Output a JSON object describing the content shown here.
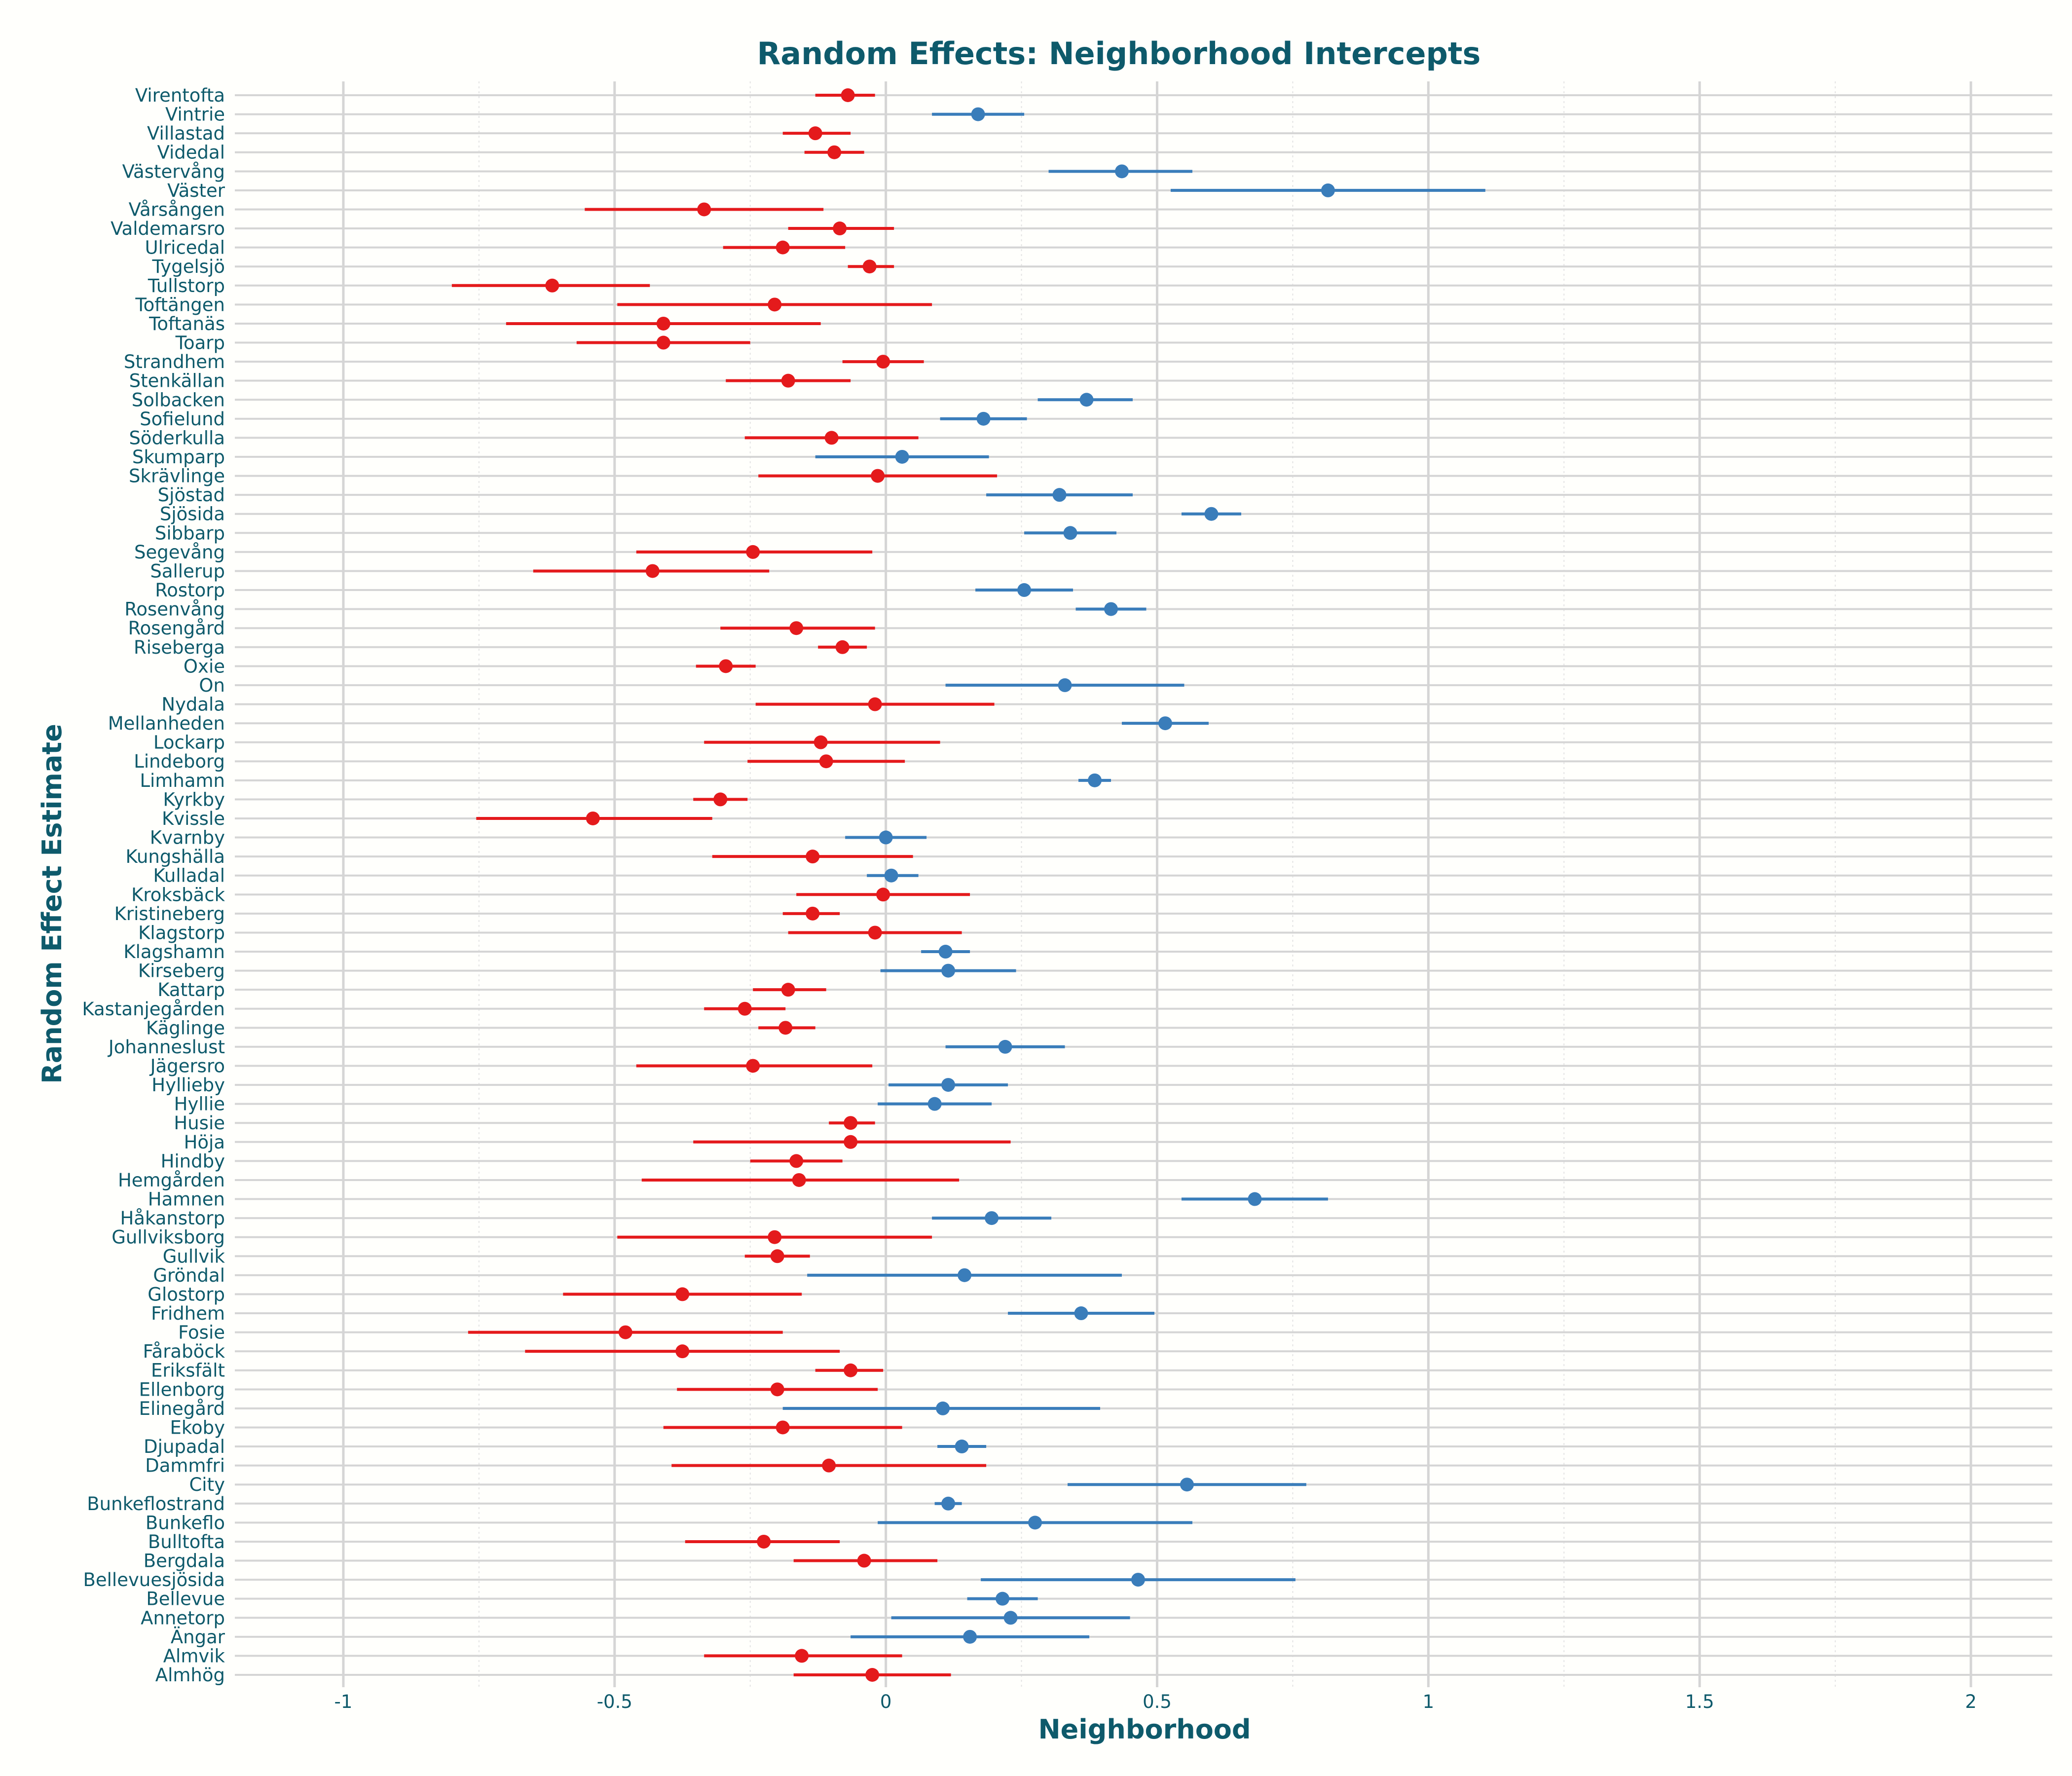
{
  "chart_data": {
    "type": "scatter",
    "title": "Random Effects: Neighborhood Intercepts",
    "xlabel": "Neighborhood",
    "ylabel": "Random Effect Estimate",
    "xlim": [
      -1.2,
      2.15
    ],
    "xticks": [
      -1,
      -0.5,
      0,
      0.5,
      1,
      1.5,
      2
    ],
    "xtick_labels": [
      "-1",
      "-0.5",
      "0",
      "0.5",
      "1",
      "1.5",
      "2"
    ],
    "grid": true,
    "legend": "none",
    "colors": {
      "positive": "#3A7DBA",
      "negative": "#E41A1C",
      "text": "#0E5A6B",
      "grid": "#D5D5D5",
      "background": "#FFFFFC"
    },
    "points": [
      {
        "name": "Virentofta",
        "estimate": -0.07,
        "lower": -0.13,
        "upper": -0.02
      },
      {
        "name": "Vintrie",
        "estimate": 0.17,
        "lower": 0.085,
        "upper": 0.255
      },
      {
        "name": "Villastad",
        "estimate": -0.13,
        "lower": -0.19,
        "upper": -0.065
      },
      {
        "name": "Videdal",
        "estimate": -0.095,
        "lower": -0.15,
        "upper": -0.04
      },
      {
        "name": "Västervång",
        "estimate": 0.435,
        "lower": 0.3,
        "upper": 0.565
      },
      {
        "name": "Väster",
        "estimate": 0.815,
        "lower": 0.525,
        "upper": 1.105
      },
      {
        "name": "Vårsången",
        "estimate": -0.335,
        "lower": -0.555,
        "upper": -0.115
      },
      {
        "name": "Valdemarsro",
        "estimate": -0.085,
        "lower": -0.18,
        "upper": 0.015
      },
      {
        "name": "Ulricedal",
        "estimate": -0.19,
        "lower": -0.3,
        "upper": -0.075
      },
      {
        "name": "Tygelsjö",
        "estimate": -0.03,
        "lower": -0.07,
        "upper": 0.015
      },
      {
        "name": "Tullstorp",
        "estimate": -0.615,
        "lower": -0.8,
        "upper": -0.435
      },
      {
        "name": "Toftängen",
        "estimate": -0.205,
        "lower": -0.495,
        "upper": 0.085
      },
      {
        "name": "Toftanäs",
        "estimate": -0.41,
        "lower": -0.7,
        "upper": -0.12
      },
      {
        "name": "Toarp",
        "estimate": -0.41,
        "lower": -0.57,
        "upper": -0.25
      },
      {
        "name": "Strandhem",
        "estimate": -0.005,
        "lower": -0.08,
        "upper": 0.07
      },
      {
        "name": "Stenkällan",
        "estimate": -0.18,
        "lower": -0.295,
        "upper": -0.065
      },
      {
        "name": "Solbacken",
        "estimate": 0.37,
        "lower": 0.28,
        "upper": 0.455
      },
      {
        "name": "Sofielund",
        "estimate": 0.18,
        "lower": 0.1,
        "upper": 0.26
      },
      {
        "name": "Söderkulla",
        "estimate": -0.1,
        "lower": -0.26,
        "upper": 0.06
      },
      {
        "name": "Skumparp",
        "estimate": 0.03,
        "lower": -0.13,
        "upper": 0.19
      },
      {
        "name": "Skrävlinge",
        "estimate": -0.015,
        "lower": -0.235,
        "upper": 0.205
      },
      {
        "name": "Sjöstad",
        "estimate": 0.32,
        "lower": 0.185,
        "upper": 0.455
      },
      {
        "name": "Sjösida",
        "estimate": 0.6,
        "lower": 0.545,
        "upper": 0.655
      },
      {
        "name": "Sibbarp",
        "estimate": 0.34,
        "lower": 0.255,
        "upper": 0.425
      },
      {
        "name": "Segevång",
        "estimate": -0.245,
        "lower": -0.46,
        "upper": -0.025
      },
      {
        "name": "Sallerup",
        "estimate": -0.43,
        "lower": -0.65,
        "upper": -0.215
      },
      {
        "name": "Rostorp",
        "estimate": 0.255,
        "lower": 0.165,
        "upper": 0.345
      },
      {
        "name": "Rosenvång",
        "estimate": 0.415,
        "lower": 0.35,
        "upper": 0.48
      },
      {
        "name": "Rosengård",
        "estimate": -0.165,
        "lower": -0.305,
        "upper": -0.02
      },
      {
        "name": "Riseberga",
        "estimate": -0.08,
        "lower": -0.125,
        "upper": -0.035
      },
      {
        "name": "Oxie",
        "estimate": -0.295,
        "lower": -0.35,
        "upper": -0.24
      },
      {
        "name": "On",
        "estimate": 0.33,
        "lower": 0.11,
        "upper": 0.55
      },
      {
        "name": "Nydala",
        "estimate": -0.02,
        "lower": -0.24,
        "upper": 0.2
      },
      {
        "name": "Mellanheden",
        "estimate": 0.515,
        "lower": 0.435,
        "upper": 0.595
      },
      {
        "name": "Lockarp",
        "estimate": -0.12,
        "lower": -0.335,
        "upper": 0.1
      },
      {
        "name": "Lindeborg",
        "estimate": -0.11,
        "lower": -0.255,
        "upper": 0.035
      },
      {
        "name": "Limhamn",
        "estimate": 0.385,
        "lower": 0.355,
        "upper": 0.415
      },
      {
        "name": "Kyrkby",
        "estimate": -0.305,
        "lower": -0.355,
        "upper": -0.255
      },
      {
        "name": "Kvissle",
        "estimate": -0.54,
        "lower": -0.755,
        "upper": -0.32
      },
      {
        "name": "Kvarnby",
        "estimate": 0.0,
        "lower": -0.075,
        "upper": 0.075
      },
      {
        "name": "Kungshälla",
        "estimate": -0.135,
        "lower": -0.32,
        "upper": 0.05
      },
      {
        "name": "Kulladal",
        "estimate": 0.01,
        "lower": -0.035,
        "upper": 0.06
      },
      {
        "name": "Kroksbäck",
        "estimate": -0.005,
        "lower": -0.165,
        "upper": 0.155
      },
      {
        "name": "Kristineberg",
        "estimate": -0.135,
        "lower": -0.19,
        "upper": -0.085
      },
      {
        "name": "Klagstorp",
        "estimate": -0.02,
        "lower": -0.18,
        "upper": 0.14
      },
      {
        "name": "Klagshamn",
        "estimate": 0.11,
        "lower": 0.065,
        "upper": 0.155
      },
      {
        "name": "Kirseberg",
        "estimate": 0.115,
        "lower": -0.01,
        "upper": 0.24
      },
      {
        "name": "Kattarp",
        "estimate": -0.18,
        "lower": -0.245,
        "upper": -0.11
      },
      {
        "name": "Kastanjegården",
        "estimate": -0.26,
        "lower": -0.335,
        "upper": -0.185
      },
      {
        "name": "Käglinge",
        "estimate": -0.185,
        "lower": -0.235,
        "upper": -0.13
      },
      {
        "name": "Johanneslust",
        "estimate": 0.22,
        "lower": 0.11,
        "upper": 0.33
      },
      {
        "name": "Jägersro",
        "estimate": -0.245,
        "lower": -0.46,
        "upper": -0.025
      },
      {
        "name": "Hyllieby",
        "estimate": 0.115,
        "lower": 0.005,
        "upper": 0.225
      },
      {
        "name": "Hyllie",
        "estimate": 0.09,
        "lower": -0.015,
        "upper": 0.195
      },
      {
        "name": "Husie",
        "estimate": -0.065,
        "lower": -0.105,
        "upper": -0.02
      },
      {
        "name": "Höja",
        "estimate": -0.065,
        "lower": -0.355,
        "upper": 0.23
      },
      {
        "name": "Hindby",
        "estimate": -0.165,
        "lower": -0.25,
        "upper": -0.08
      },
      {
        "name": "Hemgården",
        "estimate": -0.16,
        "lower": -0.45,
        "upper": 0.135
      },
      {
        "name": "Hamnen",
        "estimate": 0.68,
        "lower": 0.545,
        "upper": 0.815
      },
      {
        "name": "Håkanstorp",
        "estimate": 0.195,
        "lower": 0.085,
        "upper": 0.305
      },
      {
        "name": "Gullviksborg",
        "estimate": -0.205,
        "lower": -0.495,
        "upper": 0.085
      },
      {
        "name": "Gullvik",
        "estimate": -0.2,
        "lower": -0.26,
        "upper": -0.14
      },
      {
        "name": "Gröndal",
        "estimate": 0.145,
        "lower": -0.145,
        "upper": 0.435
      },
      {
        "name": "Glostorp",
        "estimate": -0.375,
        "lower": -0.595,
        "upper": -0.155
      },
      {
        "name": "Fridhem",
        "estimate": 0.36,
        "lower": 0.225,
        "upper": 0.495
      },
      {
        "name": "Fosie",
        "estimate": -0.48,
        "lower": -0.77,
        "upper": -0.19
      },
      {
        "name": "Fåraböck",
        "estimate": -0.375,
        "lower": -0.665,
        "upper": -0.085
      },
      {
        "name": "Eriksfält",
        "estimate": -0.065,
        "lower": -0.13,
        "upper": -0.005
      },
      {
        "name": "Ellenborg",
        "estimate": -0.2,
        "lower": -0.385,
        "upper": -0.015
      },
      {
        "name": "Elinegård",
        "estimate": 0.105,
        "lower": -0.19,
        "upper": 0.395
      },
      {
        "name": "Ekoby",
        "estimate": -0.19,
        "lower": -0.41,
        "upper": 0.03
      },
      {
        "name": "Djupadal",
        "estimate": 0.14,
        "lower": 0.095,
        "upper": 0.185
      },
      {
        "name": "Dammfri",
        "estimate": -0.105,
        "lower": -0.395,
        "upper": 0.185
      },
      {
        "name": "City",
        "estimate": 0.555,
        "lower": 0.335,
        "upper": 0.775
      },
      {
        "name": "Bunkeflostrand",
        "estimate": 0.115,
        "lower": 0.09,
        "upper": 0.14
      },
      {
        "name": "Bunkeflo",
        "estimate": 0.275,
        "lower": -0.015,
        "upper": 0.565
      },
      {
        "name": "Bulltofta",
        "estimate": -0.225,
        "lower": -0.37,
        "upper": -0.085
      },
      {
        "name": "Bergdala",
        "estimate": -0.04,
        "lower": -0.17,
        "upper": 0.095
      },
      {
        "name": "Bellevuesjösida",
        "estimate": 0.465,
        "lower": 0.175,
        "upper": 0.755
      },
      {
        "name": "Bellevue",
        "estimate": 0.215,
        "lower": 0.15,
        "upper": 0.28
      },
      {
        "name": "Annetorp",
        "estimate": 0.23,
        "lower": 0.01,
        "upper": 0.45
      },
      {
        "name": "Ängar",
        "estimate": 0.155,
        "lower": -0.065,
        "upper": 0.375
      },
      {
        "name": "Almvik",
        "estimate": -0.155,
        "lower": -0.335,
        "upper": 0.03
      },
      {
        "name": "Almhög",
        "estimate": -0.025,
        "lower": -0.17,
        "upper": 0.12
      }
    ]
  }
}
